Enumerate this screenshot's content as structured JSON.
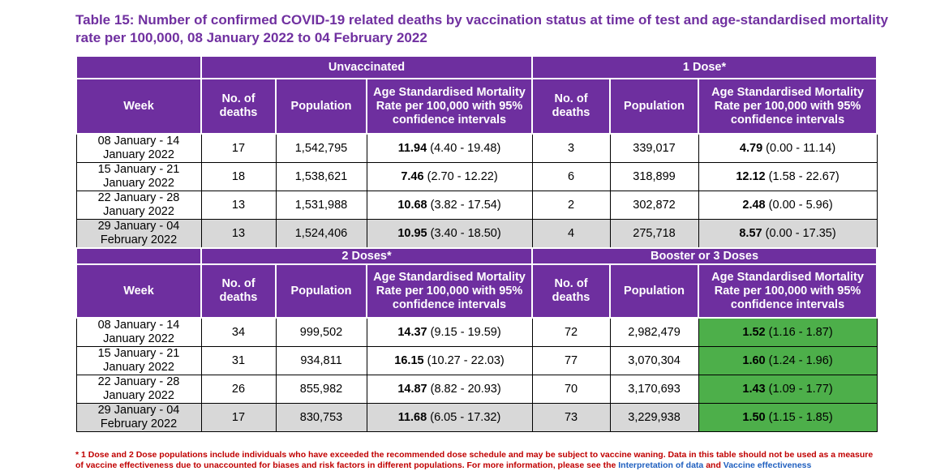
{
  "title": "Table 15: Number of confirmed COVID-19 related deaths by vaccination status at time of test and age-standardised mortality rate per 100,000, 08 January 2022 to 04 February 2022",
  "headers": {
    "week": "Week",
    "deaths": "No. of deaths",
    "population": "Population",
    "asmr_left": "Age Standardised Mortality Rate per 100,000 with 95% confidence intervals",
    "asmr_right": "Age Standardised Mortality Rate per 100,000 with 95% confidence intervals"
  },
  "groups": {
    "unvaccinated": "Unvaccinated",
    "dose1": "1 Dose*",
    "dose2": "2 Doses*",
    "booster": "Booster or 3 Doses"
  },
  "section1": [
    {
      "week": "08 January - 14 January 2022",
      "u_deaths": "17",
      "u_pop": "1,542,795",
      "u_rate": "11.94",
      "u_ci": "(4.40 - 19.48)",
      "d_deaths": "3",
      "d_pop": "339,017",
      "d_rate": "4.79",
      "d_ci": "(0.00 - 11.14)"
    },
    {
      "week": "15 January - 21 January 2022",
      "u_deaths": "18",
      "u_pop": "1,538,621",
      "u_rate": "7.46",
      "u_ci": "(2.70 - 12.22)",
      "d_deaths": "6",
      "d_pop": "318,899",
      "d_rate": "12.12",
      "d_ci": "(1.58 - 22.67)"
    },
    {
      "week": "22 January - 28 January 2022",
      "u_deaths": "13",
      "u_pop": "1,531,988",
      "u_rate": "10.68",
      "u_ci": "(3.82 - 17.54)",
      "d_deaths": "2",
      "d_pop": "302,872",
      "d_rate": "2.48",
      "d_ci": "(0.00 - 5.96)"
    },
    {
      "week": "29 January - 04 February 2022",
      "u_deaths": "13",
      "u_pop": "1,524,406",
      "u_rate": "10.95",
      "u_ci": "(3.40 - 18.50)",
      "d_deaths": "4",
      "d_pop": "275,718",
      "d_rate": "8.57",
      "d_ci": "(0.00 - 17.35)"
    }
  ],
  "section2": [
    {
      "week": "08 January - 14 January 2022",
      "u_deaths": "34",
      "u_pop": "999,502",
      "u_rate": "14.37",
      "u_ci": "(9.15 - 19.59)",
      "d_deaths": "72",
      "d_pop": "2,982,479",
      "d_rate": "1.52",
      "d_ci": "(1.16 - 1.87)"
    },
    {
      "week": "15 January - 21 January 2022",
      "u_deaths": "31",
      "u_pop": "934,811",
      "u_rate": "16.15",
      "u_ci": "(10.27 - 22.03)",
      "d_deaths": "77",
      "d_pop": "3,070,304",
      "d_rate": "1.60",
      "d_ci": "(1.24 - 1.96)"
    },
    {
      "week": "22 January - 28 January 2022",
      "u_deaths": "26",
      "u_pop": "855,982",
      "u_rate": "14.87",
      "u_ci": "(8.82 - 20.93)",
      "d_deaths": "70",
      "d_pop": "3,170,693",
      "d_rate": "1.43",
      "d_ci": "(1.09 - 1.77)"
    },
    {
      "week": "29 January - 04 February 2022",
      "u_deaths": "17",
      "u_pop": "830,753",
      "u_rate": "11.68",
      "u_ci": "(6.05 - 17.32)",
      "d_deaths": "73",
      "d_pop": "3,229,938",
      "d_rate": "1.50",
      "d_ci": "(1.15 - 1.85)"
    }
  ],
  "footnote": {
    "text": "* 1 Dose and 2 Dose populations include individuals who have exceeded the recommended dose schedule and may be subject to vaccine waning. Data in this table should not be used as a measure of vaccine effectiveness due to unaccounted for biases and risk factors in different populations. For more information, please see the",
    "link1": "Interpretation of data",
    "and": "and",
    "link2": "Vaccine effectiveness"
  },
  "colors": {
    "header_purple": "#6e2f9f",
    "title_purple": "#7030a0",
    "shaded_row": "#d8d8d8",
    "booster_rate_green": "#4daf4a",
    "footnote_red": "#c00000"
  }
}
